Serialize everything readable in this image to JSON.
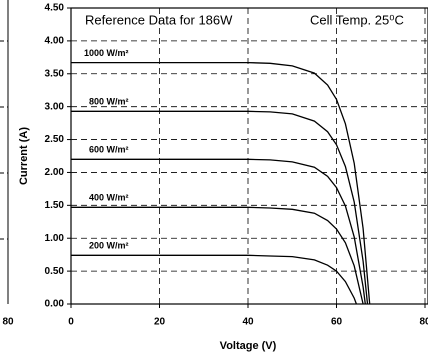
{
  "chart_data": [
    {
      "type": "line",
      "annotations": [
        "Reference Data for 186W",
        "Cell Temp. 25⁰C"
      ],
      "xlabel": "Voltage (V)",
      "ylabel": "Current (A)",
      "xlim": [
        0,
        80
      ],
      "xticks": [
        0,
        20,
        40,
        60,
        80
      ],
      "ylim": [
        0,
        4.5
      ],
      "yticks": [
        {
          "value": 0,
          "label": "0.00"
        },
        {
          "value": 0.5,
          "label": "0.50"
        },
        {
          "value": 1,
          "label": "1.00"
        },
        {
          "value": 1.5,
          "label": "1.50"
        },
        {
          "value": 2,
          "label": "2.00"
        },
        {
          "value": 2.5,
          "label": "2.50"
        },
        {
          "value": 3,
          "label": "3.00"
        },
        {
          "value": 3.5,
          "label": "3.50"
        },
        {
          "value": 4,
          "label": "4.00"
        },
        {
          "value": 4.5,
          "label": "4.50"
        }
      ],
      "grid": true,
      "series": [
        {
          "name": "1000 W/m²",
          "color": "#000000",
          "x": [
            0,
            10,
            20,
            30,
            40,
            45,
            50,
            55,
            58,
            60,
            62,
            64,
            66,
            67.5
          ],
          "values": [
            3.67,
            3.67,
            3.67,
            3.67,
            3.67,
            3.66,
            3.62,
            3.51,
            3.33,
            3.11,
            2.74,
            2.14,
            1.15,
            0
          ]
        },
        {
          "name": "800 W/m²",
          "color": "#000000",
          "x": [
            0,
            10,
            20,
            30,
            40,
            45,
            50,
            55,
            58,
            60,
            62,
            64,
            66,
            67
          ],
          "values": [
            2.93,
            2.93,
            2.93,
            2.93,
            2.93,
            2.92,
            2.89,
            2.78,
            2.62,
            2.42,
            2.09,
            1.55,
            0.65,
            0
          ]
        },
        {
          "name": "600 W/m²",
          "color": "#000000",
          "x": [
            0,
            10,
            20,
            30,
            40,
            45,
            50,
            55,
            58,
            60,
            62,
            64,
            66,
            66.5
          ],
          "values": [
            2.2,
            2.2,
            2.2,
            2.2,
            2.2,
            2.19,
            2.16,
            2.08,
            1.94,
            1.77,
            1.49,
            1.02,
            0.26,
            0
          ]
        },
        {
          "name": "400 W/m²",
          "color": "#000000",
          "x": [
            0,
            10,
            20,
            30,
            40,
            45,
            50,
            55,
            58,
            60,
            62,
            64,
            66
          ],
          "values": [
            1.47,
            1.47,
            1.47,
            1.47,
            1.47,
            1.46,
            1.44,
            1.38,
            1.27,
            1.14,
            0.93,
            0.58,
            0
          ]
        },
        {
          "name": "200 W/m²",
          "color": "#000000",
          "x": [
            0,
            10,
            20,
            30,
            40,
            45,
            50,
            55,
            58,
            60,
            62,
            64,
            64.5
          ],
          "values": [
            0.74,
            0.74,
            0.74,
            0.74,
            0.74,
            0.73,
            0.72,
            0.67,
            0.59,
            0.5,
            0.34,
            0.09,
            0
          ]
        }
      ]
    },
    {
      "type": "line",
      "xticks": [
        80
      ]
    }
  ]
}
